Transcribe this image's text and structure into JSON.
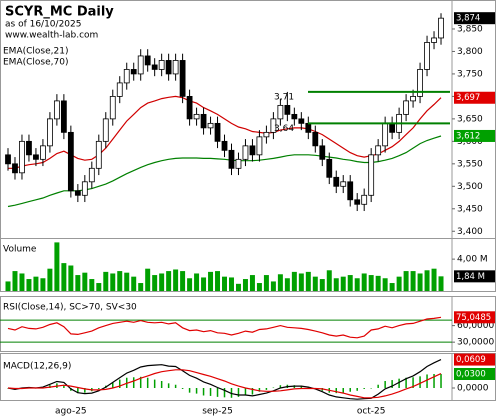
{
  "chart_data": [
    {
      "type": "candlestick",
      "title": "SCYR_MC Daily",
      "subtitle": "as of 16/10/2025",
      "source": "www.wealth-lab.com",
      "categories": [
        null,
        null,
        null,
        null,
        null,
        null,
        null,
        null,
        null,
        "ago-25",
        null,
        null,
        null,
        null,
        null,
        null,
        null,
        null,
        null,
        null,
        null,
        null,
        null,
        null,
        null,
        null,
        null,
        null,
        null,
        null,
        "sep-25",
        null,
        null,
        null,
        null,
        null,
        null,
        null,
        null,
        null,
        null,
        null,
        null,
        null,
        null,
        null,
        null,
        null,
        null,
        null,
        null,
        null,
        "oct-25",
        null,
        null,
        null,
        null,
        null,
        null,
        null,
        null,
        null,
        null
      ],
      "open": [
        3570,
        3550,
        3530,
        3600,
        3570,
        3560,
        3590,
        3650,
        3690,
        3620,
        3490,
        3480,
        3510,
        3540,
        3600,
        3650,
        3700,
        3730,
        3760,
        3750,
        3790,
        3770,
        3760,
        3780,
        3750,
        3780,
        3700,
        3650,
        3660,
        3630,
        3640,
        3600,
        3580,
        3540,
        3560,
        3590,
        3570,
        3610,
        3620,
        3650,
        3680,
        3660,
        3650,
        3640,
        3620,
        3590,
        3560,
        3520,
        3500,
        3510,
        3470,
        3460,
        3480,
        3570,
        3590,
        3640,
        3620,
        3660,
        3690,
        3700,
        3760,
        3820,
        3830
      ],
      "high": [
        3585,
        3565,
        3615,
        3615,
        3585,
        3605,
        3665,
        3705,
        3705,
        3635,
        3505,
        3525,
        3555,
        3615,
        3665,
        3715,
        3745,
        3775,
        3775,
        3805,
        3805,
        3785,
        3795,
        3795,
        3795,
        3795,
        3715,
        3675,
        3675,
        3655,
        3655,
        3615,
        3595,
        3575,
        3605,
        3605,
        3625,
        3635,
        3665,
        3695,
        3710,
        3675,
        3665,
        3655,
        3635,
        3605,
        3575,
        3535,
        3525,
        3525,
        3485,
        3495,
        3585,
        3605,
        3655,
        3655,
        3675,
        3705,
        3715,
        3775,
        3835,
        3845,
        3885
      ],
      "low": [
        3535,
        3515,
        3515,
        3555,
        3545,
        3545,
        3575,
        3635,
        3605,
        3475,
        3465,
        3465,
        3495,
        3525,
        3585,
        3635,
        3685,
        3715,
        3735,
        3735,
        3755,
        3745,
        3745,
        3735,
        3735,
        3685,
        3635,
        3635,
        3615,
        3615,
        3585,
        3565,
        3525,
        3525,
        3545,
        3555,
        3555,
        3595,
        3605,
        3635,
        3645,
        3635,
        3625,
        3605,
        3575,
        3545,
        3505,
        3485,
        3485,
        3455,
        3445,
        3445,
        3465,
        3555,
        3575,
        3605,
        3605,
        3645,
        3675,
        3685,
        3745,
        3805,
        3815
      ],
      "close": [
        3550,
        3530,
        3600,
        3570,
        3560,
        3590,
        3650,
        3690,
        3620,
        3490,
        3480,
        3510,
        3540,
        3600,
        3650,
        3700,
        3730,
        3760,
        3750,
        3790,
        3770,
        3760,
        3780,
        3750,
        3780,
        3700,
        3650,
        3660,
        3630,
        3640,
        3600,
        3580,
        3540,
        3560,
        3590,
        3570,
        3610,
        3620,
        3650,
        3680,
        3660,
        3650,
        3640,
        3620,
        3590,
        3560,
        3520,
        3500,
        3510,
        3470,
        3460,
        3480,
        3570,
        3590,
        3640,
        3620,
        3660,
        3690,
        3700,
        3760,
        3820,
        3830,
        3874
      ],
      "last_label": "3,874",
      "label_color": "#000000",
      "up_color": "#ffffff",
      "down_color": "#000000",
      "ylim": [
        3385,
        3910
      ],
      "yticks": [
        {
          "value": 3400,
          "label": "3,400"
        },
        {
          "value": 3450,
          "label": "3,450"
        },
        {
          "value": 3500,
          "label": "3,500"
        },
        {
          "value": 3550,
          "label": "3,550"
        },
        {
          "value": 3600,
          "label": "3,600"
        },
        {
          "value": 3650,
          "label": "3,650"
        },
        {
          "value": 3700,
          "label": "3,700"
        },
        {
          "value": 3750,
          "label": "3,750"
        },
        {
          "value": 3800,
          "label": "3,800"
        },
        {
          "value": 3850,
          "label": "3,850"
        }
      ],
      "levels": [
        {
          "value": 3710,
          "label": "3,71"
        },
        {
          "value": 3640,
          "label": "3,64"
        }
      ],
      "level_color": "#008000",
      "series": [
        {
          "name": "EMA(Close,21)",
          "color": "#d00000",
          "label_color": "#e00000",
          "last_label": "3,697",
          "values": [
            3540,
            3540,
            3545,
            3548,
            3550,
            3553,
            3562,
            3573,
            3578,
            3570,
            3562,
            3558,
            3560,
            3570,
            3585,
            3605,
            3625,
            3645,
            3660,
            3675,
            3685,
            3690,
            3695,
            3698,
            3700,
            3697,
            3690,
            3685,
            3675,
            3668,
            3660,
            3650,
            3640,
            3632,
            3628,
            3622,
            3620,
            3618,
            3620,
            3625,
            3628,
            3630,
            3630,
            3628,
            3622,
            3615,
            3605,
            3595,
            3585,
            3575,
            3568,
            3565,
            3568,
            3572,
            3580,
            3588,
            3600,
            3615,
            3630,
            3650,
            3668,
            3682,
            3697
          ]
        },
        {
          "name": "EMA(Close,70)",
          "color": "#008000",
          "label_color": "#00a000",
          "last_label": "3,612",
          "values": [
            3455,
            3458,
            3462,
            3466,
            3470,
            3474,
            3480,
            3485,
            3490,
            3490,
            3490,
            3492,
            3495,
            3500,
            3505,
            3512,
            3520,
            3528,
            3535,
            3542,
            3548,
            3553,
            3557,
            3560,
            3562,
            3563,
            3563,
            3563,
            3562,
            3562,
            3561,
            3560,
            3558,
            3557,
            3557,
            3557,
            3558,
            3560,
            3562,
            3565,
            3568,
            3570,
            3570,
            3570,
            3569,
            3567,
            3565,
            3563,
            3560,
            3558,
            3555,
            3553,
            3553,
            3555,
            3558,
            3562,
            3568,
            3575,
            3585,
            3595,
            3602,
            3607,
            3612
          ]
        }
      ],
      "grid": false
    },
    {
      "type": "bar",
      "title": "Volume",
      "color": "#00a000",
      "last_label": "1,84 M",
      "label_color": "#000000",
      "values": [
        1.2,
        2.5,
        2.2,
        1.5,
        1.8,
        1.6,
        2.8,
        6.1,
        3.5,
        3.2,
        2.0,
        2.3,
        1.5,
        1.0,
        2.4,
        2.2,
        2.5,
        2.3,
        1.8,
        1.0,
        2.8,
        2.0,
        2.2,
        2.5,
        2.7,
        2.5,
        1.6,
        2.2,
        1.7,
        2.4,
        2.5,
        1.8,
        1.7,
        0.9,
        1.5,
        2.0,
        1.0,
        2.0,
        1.2,
        2.1,
        1.6,
        2.4,
        2.2,
        2.4,
        1.8,
        1.5,
        2.6,
        1.6,
        1.8,
        2.0,
        1.6,
        2.2,
        2.0,
        1.9,
        1.6,
        1.0,
        1.8,
        2.5,
        2.5,
        2.2,
        2.6,
        2.8,
        1.84
      ],
      "ylim": [
        0,
        6.4
      ],
      "yticks": [
        {
          "value": 4,
          "label": "4,00 M"
        }
      ]
    },
    {
      "type": "line",
      "title": "RSI(Close,14), SC>70, SV<30",
      "series": [
        {
          "color": "#e00000",
          "label_color": "#e00000",
          "last_label": "75,0485",
          "values": [
            55,
            52,
            58,
            55,
            54,
            57,
            62,
            65,
            58,
            45,
            44,
            47,
            50,
            56,
            60,
            64,
            66,
            68,
            66,
            69,
            66,
            65,
            66,
            63,
            65,
            56,
            51,
            52,
            49,
            51,
            47,
            46,
            43,
            46,
            50,
            48,
            53,
            54,
            57,
            60,
            57,
            56,
            55,
            53,
            50,
            47,
            43,
            41,
            43,
            39,
            38,
            41,
            52,
            54,
            59,
            56,
            60,
            63,
            64,
            68,
            72,
            73,
            75.0485
          ]
        }
      ],
      "thresholds": [
        70,
        30
      ],
      "threshold_color": "#008000",
      "ylim": [
        14,
        110
      ],
      "yticks": [
        {
          "value": 60,
          "label": "60,0000"
        },
        {
          "value": 30,
          "label": "30,0000"
        }
      ]
    },
    {
      "type": "macd",
      "title": "MACD(12,26,9)",
      "series": [
        {
          "type": "bar",
          "color": "#00a000",
          "label_color": "#00a000",
          "last_label": "0,0300",
          "values": [
            0,
            -0.002,
            0.001,
            0.001,
            0,
            0.002,
            0.006,
            0.01,
            0.006,
            -0.006,
            -0.011,
            -0.01,
            -0.007,
            -0.002,
            0.005,
            0.012,
            0.018,
            0.022,
            0.023,
            0.024,
            0.022,
            0.018,
            0.015,
            0.01,
            0.007,
            -0.002,
            -0.01,
            -0.012,
            -0.016,
            -0.017,
            -0.019,
            -0.02,
            -0.021,
            -0.019,
            -0.015,
            -0.014,
            -0.008,
            -0.004,
            0.001,
            0.006,
            0.007,
            0.006,
            0.005,
            0.003,
            -0.001,
            -0.006,
            -0.01,
            -0.011,
            -0.01,
            -0.008,
            -0.006,
            -0.002,
            -0.001,
            0.007,
            0.015,
            0.017,
            0.02,
            0.022,
            0.023,
            0.025,
            0.029,
            0.03,
            0.03
          ]
        },
        {
          "type": "line",
          "color": "#000000",
          "label_color": "#e00000",
          "last_label": "0,0609",
          "values": [
            0,
            -0.003,
            0,
            0.001,
            0,
            0.002,
            0.008,
            0.014,
            0.012,
            -0.002,
            -0.01,
            -0.012,
            -0.011,
            -0.006,
            0.002,
            0.012,
            0.022,
            0.032,
            0.038,
            0.045,
            0.048,
            0.049,
            0.05,
            0.047,
            0.046,
            0.037,
            0.027,
            0.021,
            0.013,
            0.008,
            0.001,
            -0.005,
            -0.012,
            -0.015,
            -0.015,
            -0.017,
            -0.014,
            -0.011,
            -0.006,
            0,
            0.003,
            0.004,
            0.004,
            0.002,
            -0.002,
            -0.008,
            -0.015,
            -0.019,
            -0.021,
            -0.023,
            -0.024,
            -0.023,
            -0.022,
            -0.013,
            -0.002,
            0.004,
            0.012,
            0.02,
            0.026,
            0.035,
            0.046,
            0.054,
            0.0609
          ]
        },
        {
          "type": "line",
          "color": "#e00000",
          "values": [
            0,
            -0.001,
            -0.001,
            0,
            0,
            0,
            0.002,
            0.004,
            0.006,
            0.004,
            0.001,
            -0.002,
            -0.004,
            -0.004,
            -0.003,
            0,
            0.004,
            0.01,
            0.015,
            0.021,
            0.026,
            0.031,
            0.035,
            0.037,
            0.039,
            0.039,
            0.037,
            0.033,
            0.029,
            0.025,
            0.02,
            0.015,
            0.009,
            0.004,
            0,
            -0.003,
            -0.006,
            -0.007,
            -0.007,
            -0.006,
            -0.004,
            -0.002,
            -0.001,
            -0.001,
            -0.001,
            -0.002,
            -0.005,
            -0.008,
            -0.011,
            -0.015,
            -0.018,
            -0.021,
            -0.021,
            -0.02,
            -0.017,
            -0.013,
            -0.008,
            -0.002,
            0.003,
            0.01,
            0.017,
            0.024,
            0.0309
          ]
        }
      ],
      "ylim": [
        -0.0257,
        0.0707
      ],
      "yticks": [
        {
          "value": 0,
          "label": "0,0000"
        }
      ]
    }
  ]
}
